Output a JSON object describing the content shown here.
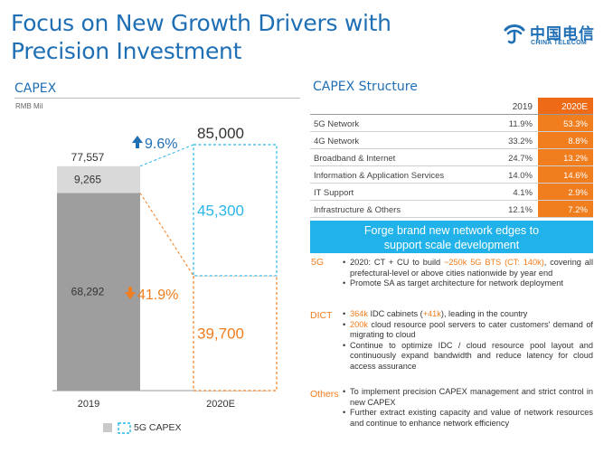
{
  "title": "Focus on New Growth Drivers with Precision Investment",
  "logo": {
    "cn": "中国电信",
    "en": "CHINA TELECOM",
    "icon": "china-telecom-logo-icon",
    "color": "#1f6fb5"
  },
  "capex": {
    "heading": "CAPEX",
    "unit": "RMB Mil",
    "legend": "5G CAPEX"
  },
  "chart_data": {
    "type": "bar",
    "categories": [
      "2019",
      "2020E"
    ],
    "totals": [
      77557,
      85000
    ],
    "series": [
      {
        "name": "5G CAPEX",
        "values": [
          9265,
          45300
        ],
        "colors": [
          "#d9d9d9",
          "#ffffff"
        ]
      },
      {
        "values": [
          68292,
          39700
        ],
        "colors": [
          "#9e9e9e",
          "#ffffff"
        ]
      }
    ],
    "labels": {
      "total_2019": "77,557",
      "total_2020": "85,000",
      "fiveg_2019": "9,265",
      "fiveg_2020": "45,300",
      "other_2019": "68,292",
      "other_2020": "39,700"
    },
    "annotations": {
      "growth_up": "9.6%",
      "growth_down": "41.9%"
    },
    "colors": {
      "fiveg_2020": "#29b6e8",
      "other_2020": "#f07d1e",
      "up_arrow": "#1f6fb5",
      "down_arrow": "#f07d1e"
    }
  },
  "structure": {
    "heading": "CAPEX Structure",
    "header": [
      "2019",
      "2020E"
    ],
    "rows": [
      {
        "label": "5G Network",
        "v2019": "11.9%",
        "v2020": "53.3%"
      },
      {
        "label": "4G Network",
        "v2019": "33.2%",
        "v2020": "8.8%"
      },
      {
        "label": "Broadband & Internet",
        "v2019": "24.7%",
        "v2020": "13.2%"
      },
      {
        "label": "Information & Application Services",
        "v2019": "14.0%",
        "v2020": "14.6%"
      },
      {
        "label": "IT Support",
        "v2019": "4.1%",
        "v2020": "2.9%"
      },
      {
        "label": "Infrastructure & Others",
        "v2019": "12.1%",
        "v2020": "7.2%"
      }
    ]
  },
  "banner": {
    "line1": "Forge brand new network edges to",
    "line2": "support scale development"
  },
  "fiveg": {
    "label": "5G",
    "b1_a": "2020: CT + CU to build ",
    "b1_hl1": "~250k 5G BTS (CT: 140k)",
    "b1_b": ", covering all prefectural-level or above cities nationwide by year end",
    "b2": "Promote SA as target architecture for network deployment"
  },
  "dict": {
    "label": "DICT",
    "b1_hl": "364k",
    "b1_a": " IDC cabinets (",
    "b1_hl2": "+41k",
    "b1_b": "), leading in the country",
    "b2_hl": "200k",
    "b2_a": " cloud resource pool servers to cater customers' demand of migrating to cloud",
    "b3": "Continue to optimize IDC / cloud resource pool layout and continuously expand bandwidth and reduce latency for cloud access assurance"
  },
  "others": {
    "label": "Others",
    "b1": "To implement precision CAPEX management and strict control in new CAPEX",
    "b2": "Further extract existing capacity and value of network resources and continue to enhance network efficiency"
  }
}
